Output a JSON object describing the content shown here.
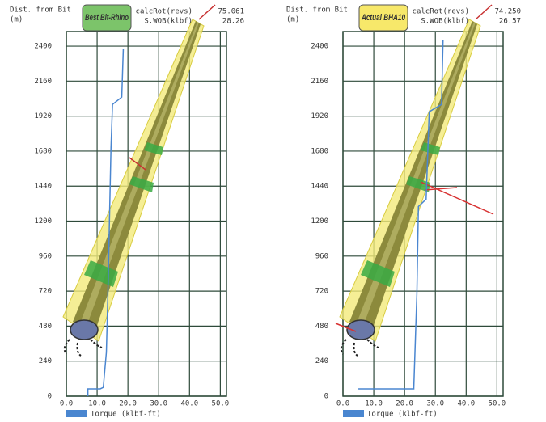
{
  "chart_data": [
    {
      "type": "line",
      "title": "Best Bit-Rhino",
      "badge_color": "#7cc46a",
      "badge_text_color": "#1e3b12",
      "y_label": "Dist. from Bit",
      "y_unit": "(m)",
      "readouts": [
        {
          "label": "calcRot(revs)",
          "value": "75.061"
        },
        {
          "label": "S.WOB(klbf)",
          "value": "28.26"
        }
      ],
      "xlim": [
        0,
        52
      ],
      "ylim": [
        0,
        2500
      ],
      "xticks": [
        {
          "value": 0,
          "label": "0.0"
        },
        {
          "value": 10,
          "label": "10.0"
        },
        {
          "value": 20,
          "label": "20.0"
        },
        {
          "value": 30,
          "label": "30.0"
        },
        {
          "value": 40,
          "label": "40.0"
        },
        {
          "value": 50,
          "label": "50.0"
        }
      ],
      "yticks": [
        0,
        240,
        480,
        720,
        960,
        1200,
        1440,
        1680,
        1920,
        2160,
        2400
      ],
      "grid": true,
      "series": [
        {
          "name": "Torque (klbf-ft)",
          "color": "#4a86d0",
          "x": [
            7,
            7,
            11,
            12,
            13,
            13.5,
            14,
            14.5,
            15,
            18,
            18.5
          ],
          "y": [
            0,
            50,
            50,
            60,
            300,
            700,
            1200,
            1700,
            2000,
            2050,
            2380
          ]
        }
      ]
    },
    {
      "type": "line",
      "title": "Actual BHA10",
      "badge_color": "#f7e86a",
      "badge_text_color": "#c0141a",
      "y_label": "Dist. from Bit",
      "y_unit": "(m)",
      "readouts": [
        {
          "label": "calcRot(revs)",
          "value": "74.250"
        },
        {
          "label": "S.WOB(klbf)",
          "value": "26.57"
        }
      ],
      "xlim": [
        0,
        52
      ],
      "ylim": [
        0,
        2500
      ],
      "xticks": [
        {
          "value": 0,
          "label": "0.0"
        },
        {
          "value": 10,
          "label": "10.0"
        },
        {
          "value": 20,
          "label": "20.0"
        },
        {
          "value": 30,
          "label": "30.0"
        },
        {
          "value": 40,
          "label": "40.0"
        },
        {
          "value": 50,
          "label": "50.0"
        }
      ],
      "yticks": [
        0,
        240,
        480,
        720,
        960,
        1200,
        1440,
        1680,
        1920,
        2160,
        2400
      ],
      "grid": true,
      "series": [
        {
          "name": "Torque (klbf-ft)",
          "color": "#4a86d0",
          "x": [
            5,
            23,
            23,
            24,
            24.5,
            27,
            28,
            32,
            32.5
          ],
          "y": [
            50,
            50,
            60,
            700,
            1300,
            1350,
            1950,
            2000,
            2440
          ]
        }
      ]
    }
  ]
}
